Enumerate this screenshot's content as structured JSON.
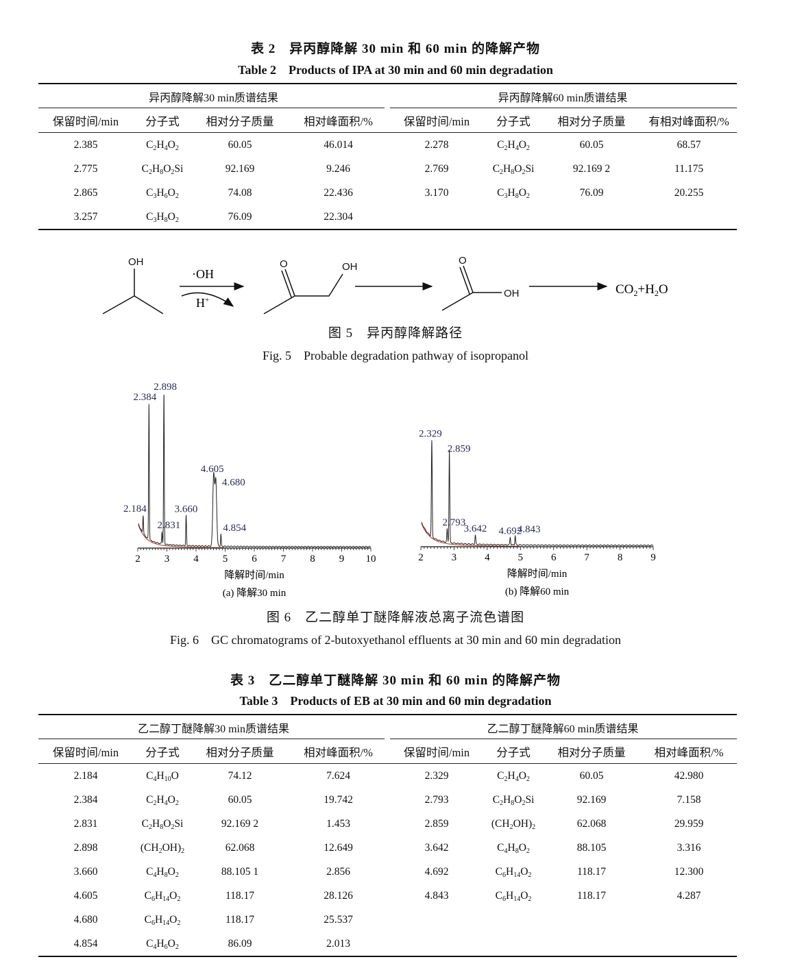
{
  "table2": {
    "title_cn": "表 2　异丙醇降解 30 min 和 60 min 的降解产物",
    "title_en": "Table 2　Products of IPA at 30 min and 60 min degradation",
    "group_left": "异丙醇降解30 min质谱结果",
    "group_right": "异丙醇降解60 min质谱结果",
    "headers_left": [
      "保留时间/min",
      "分子式",
      "相对分子质量",
      "相对峰面积/%"
    ],
    "headers_right": [
      "保留时间/min",
      "分子式",
      "相对分子质量",
      "有相对峰面积/%"
    ],
    "rows": [
      [
        "2.385",
        "C2H4O2",
        "60.05",
        "46.014",
        "2.278",
        "C2H4O2",
        "60.05",
        "68.57"
      ],
      [
        "2.775",
        "C2H8O2Si",
        "92.169",
        "9.246",
        "2.769",
        "C2H8O2Si",
        "92.169 2",
        "11.175"
      ],
      [
        "2.865",
        "C3H6O2",
        "74.08",
        "22.436",
        "3.170",
        "C3H8O2",
        "76.09",
        "20.255"
      ],
      [
        "3.257",
        "C3H8O2",
        "76.09",
        "22.304",
        "",
        "",
        "",
        ""
      ]
    ]
  },
  "fig5": {
    "oh1": "OH",
    "reagent": "·OH",
    "catalyst": "H",
    "catalyst_sup": "+",
    "o2": "O",
    "oh2": "OH",
    "o3": "O",
    "oh3": "OH",
    "product": "CO",
    "product_sub": "2",
    "product_mid": "+H",
    "product_sub2": "2",
    "product_end": "O",
    "caption_cn": "图 5　异丙醇降解路径",
    "caption_en": "Fig. 5　Probable degradation pathway of isopropanol"
  },
  "fig6": {
    "caption_cn": "图 6　乙二醇单丁醚降解液总离子流色谱图",
    "caption_en": "Fig. 6　GC chromatograms of 2-butoxyethanol effluents at 30 min and 60 min degradation"
  },
  "chart_data": [
    {
      "type": "line",
      "subtitle": "(a) 降解30 min",
      "xlabel": "降解时间/min",
      "xlim": [
        2,
        10
      ],
      "xticks": [
        "2",
        "3",
        "4",
        "5",
        "6",
        "7",
        "8",
        "9",
        "10"
      ],
      "peaks": [
        {
          "label": "2.184",
          "x": 2.184,
          "height": 12
        },
        {
          "label": "2.384",
          "x": 2.384,
          "height": 90
        },
        {
          "label": "2.831",
          "x": 2.831,
          "height": 8
        },
        {
          "label": "2.898",
          "x": 2.898,
          "height": 100
        },
        {
          "label": "3.660",
          "x": 3.66,
          "height": 20
        },
        {
          "label": "4.605",
          "x": 4.605,
          "height": 47
        },
        {
          "label": "4.680",
          "x": 4.68,
          "height": 43
        },
        {
          "label": "4.854",
          "x": 4.854,
          "height": 8
        }
      ],
      "line_color": "#222222",
      "baseline_color": "#b5533a"
    },
    {
      "type": "line",
      "subtitle": "(b) 降解60 min",
      "xlabel": "降解时间/min",
      "xlim": [
        2,
        9
      ],
      "xticks": [
        "2",
        "3",
        "4",
        "5",
        "6",
        "7",
        "8",
        "9"
      ],
      "peaks": [
        {
          "label": "2.329",
          "x": 2.329,
          "height": 64
        },
        {
          "label": "2.793",
          "x": 2.793,
          "height": 9
        },
        {
          "label": "2.859",
          "x": 2.859,
          "height": 62
        },
        {
          "label": "3.642",
          "x": 3.642,
          "height": 6
        },
        {
          "label": "4.692",
          "x": 4.692,
          "height": 5
        },
        {
          "label": "4.843",
          "x": 4.843,
          "height": 6
        }
      ],
      "line_color": "#222222",
      "baseline_color": "#b5533a"
    }
  ],
  "table3": {
    "title_cn": "表 3　乙二醇单丁醚降解 30 min 和 60 min 的降解产物",
    "title_en": "Table 3　Products of EB at 30 min and 60 min degradation",
    "group_left": "乙二醇丁醚降解30 min质谱结果",
    "group_right": "乙二醇丁醚降解60 min质谱结果",
    "headers_left": [
      "保留时间/min",
      "分子式",
      "相对分子质量",
      "相对峰面积/%"
    ],
    "headers_right": [
      "保留时间/min",
      "分子式",
      "相对分子质量",
      "相对峰面积/%"
    ],
    "rows": [
      [
        "2.184",
        "C4H10O",
        "74.12",
        "7.624",
        "2.329",
        "C2H4O2",
        "60.05",
        "42.980"
      ],
      [
        "2.384",
        "C2H4O2",
        "60.05",
        "19.742",
        "2.793",
        "C2H8O2Si",
        "92.169",
        "7.158"
      ],
      [
        "2.831",
        "C2H8O2Si",
        "92.169 2",
        "1.453",
        "2.859",
        "(CH2OH)2",
        "62.068",
        "29.959"
      ],
      [
        "2.898",
        "(CH2OH)2",
        "62.068",
        "12.649",
        "3.642",
        "C4H8O2",
        "88.105",
        "3.316"
      ],
      [
        "3.660",
        "C4H8O2",
        "88.105 1",
        "2.856",
        "4.692",
        "C6H14O2",
        "118.17",
        "12.300"
      ],
      [
        "4.605",
        "C6H14O2",
        "118.17",
        "28.126",
        "4.843",
        "C6H14O2",
        "118.17",
        "4.287"
      ],
      [
        "4.680",
        "C6H14O2",
        "118.17",
        "25.537",
        "",
        "",
        "",
        ""
      ],
      [
        "4.854",
        "C4H6O2",
        "86.09",
        "2.013",
        "",
        "",
        "",
        ""
      ]
    ]
  }
}
